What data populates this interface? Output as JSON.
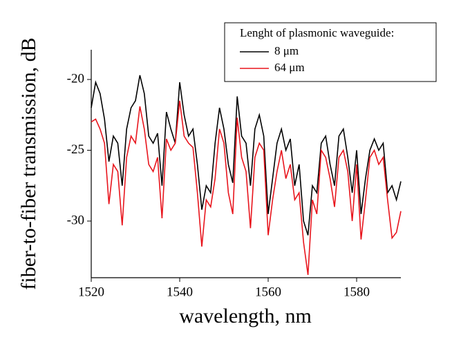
{
  "chart_data": {
    "type": "line",
    "xlabel": "wavelength, nm",
    "ylabel": "fiber-to-fiber transmission, dB",
    "legend_title": "Lenght of plasmonic waveguide:",
    "legend": "upper right",
    "x": [
      1520,
      1521,
      1522,
      1523,
      1524,
      1525,
      1526,
      1527,
      1528,
      1529,
      1530,
      1531,
      1532,
      1533,
      1534,
      1535,
      1536,
      1537,
      1538,
      1539,
      1540,
      1541,
      1542,
      1543,
      1544,
      1545,
      1546,
      1547,
      1548,
      1549,
      1550,
      1551,
      1552,
      1553,
      1554,
      1555,
      1556,
      1557,
      1558,
      1559,
      1560,
      1561,
      1562,
      1563,
      1564,
      1565,
      1566,
      1567,
      1568,
      1569,
      1570,
      1571,
      1572,
      1573,
      1574,
      1575,
      1576,
      1577,
      1578,
      1579,
      1580,
      1581,
      1582,
      1583,
      1584,
      1585,
      1586,
      1587,
      1588,
      1589,
      1590
    ],
    "series": [
      {
        "name": "8 μm",
        "color": "#000000",
        "values": [
          -22,
          -20.2,
          -21,
          -22.8,
          -25.8,
          -24,
          -24.5,
          -27.5,
          -23.5,
          -22,
          -21.5,
          -19.7,
          -21,
          -24,
          -24.5,
          -23.8,
          -27.5,
          -22.3,
          -23.5,
          -24.5,
          -20.2,
          -22.5,
          -24,
          -23.5,
          -26,
          -29.2,
          -27.5,
          -28,
          -24.5,
          -22,
          -23.5,
          -26,
          -27.3,
          -21.2,
          -24,
          -24.5,
          -27.5,
          -23.5,
          -22.5,
          -24,
          -29.5,
          -27,
          -24.5,
          -23.5,
          -25,
          -24.2,
          -27.5,
          -26,
          -30,
          -31,
          -27.5,
          -28,
          -24.5,
          -24,
          -26,
          -27.5,
          -24,
          -23.5,
          -25.5,
          -28,
          -25,
          -29.5,
          -27,
          -25,
          -24.2,
          -25,
          -24.5,
          -28,
          -27.5,
          -28.5,
          -27.2
        ]
      },
      {
        "name": "64 μm",
        "color": "#e8141c",
        "values": [
          -23,
          -22.8,
          -23.5,
          -24.5,
          -28.8,
          -26,
          -26.5,
          -30.3,
          -25.5,
          -24,
          -24.5,
          -21.9,
          -23.5,
          -26,
          -26.5,
          -25.5,
          -29.8,
          -24.2,
          -25,
          -24.5,
          -21.5,
          -24,
          -24.5,
          -24.8,
          -28,
          -31.8,
          -28.5,
          -29,
          -27,
          -23.5,
          -24.5,
          -28,
          -29.5,
          -22.7,
          -25.5,
          -26.5,
          -30.5,
          -25.5,
          -24.5,
          -25,
          -31,
          -28.5,
          -26.5,
          -25,
          -27,
          -26,
          -28.5,
          -28,
          -31.5,
          -33.8,
          -28.5,
          -29.5,
          -25,
          -25.5,
          -27,
          -29,
          -25.5,
          -25,
          -26.5,
          -30,
          -26,
          -31.3,
          -28.5,
          -25.5,
          -25,
          -26,
          -25.5,
          -28.5,
          -31.2,
          -30.8,
          -29.3
        ]
      }
    ],
    "xlim": [
      1520,
      1590
    ],
    "xticks": [
      1520,
      1540,
      1560,
      1580
    ],
    "ylim": [
      -34,
      -17.9
    ],
    "yticks": [
      -30,
      -25,
      -20
    ]
  }
}
